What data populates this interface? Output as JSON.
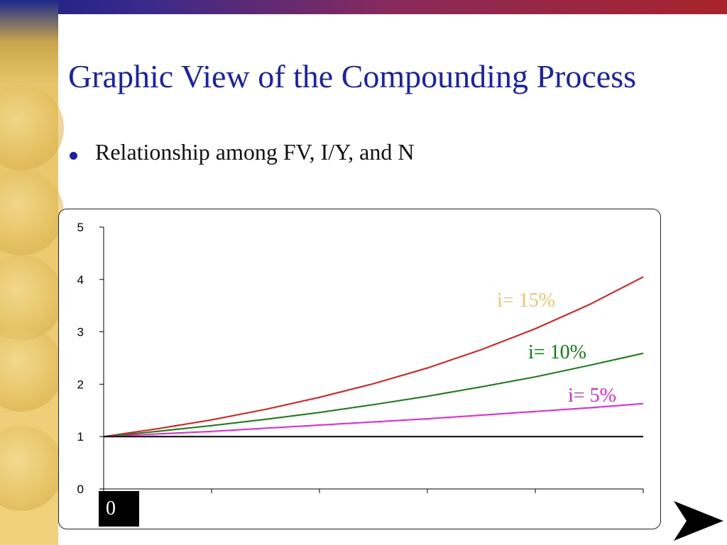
{
  "slide": {
    "title": "Graphic View of the Compounding Process",
    "bullets": [
      "Relationship among FV, I/Y, and N"
    ],
    "x_origin_label": "0",
    "nav_icon": "next-slide-arrow-icon"
  },
  "colors": {
    "title": "#1b22a6",
    "series_15": "#e01a1a",
    "series_10": "#0f7d0f",
    "series_5": "#ee1fe0",
    "label_15": "#f2c267",
    "baseline": "#000000"
  },
  "chart_data": {
    "type": "line",
    "ylim": [
      0,
      5
    ],
    "y_ticks": [
      "0",
      "1",
      "2",
      "3",
      "4",
      "5"
    ],
    "x": [
      0,
      1,
      2,
      3,
      4,
      5,
      6,
      7,
      8,
      9,
      10
    ],
    "series": [
      {
        "name": "i= 15%",
        "values": [
          1.0,
          1.15,
          1.32,
          1.52,
          1.75,
          2.01,
          2.31,
          2.66,
          3.06,
          3.52,
          4.05
        ]
      },
      {
        "name": "i= 10%",
        "values": [
          1.0,
          1.1,
          1.21,
          1.33,
          1.46,
          1.61,
          1.77,
          1.95,
          2.14,
          2.36,
          2.59
        ]
      },
      {
        "name": "i= 5%",
        "values": [
          1.0,
          1.05,
          1.1,
          1.16,
          1.22,
          1.28,
          1.34,
          1.41,
          1.48,
          1.55,
          1.63
        ]
      },
      {
        "values": [
          1,
          1,
          1,
          1,
          1,
          1,
          1,
          1,
          1,
          1,
          1
        ]
      }
    ],
    "legend": "inline labels near line ends",
    "grid": false
  }
}
